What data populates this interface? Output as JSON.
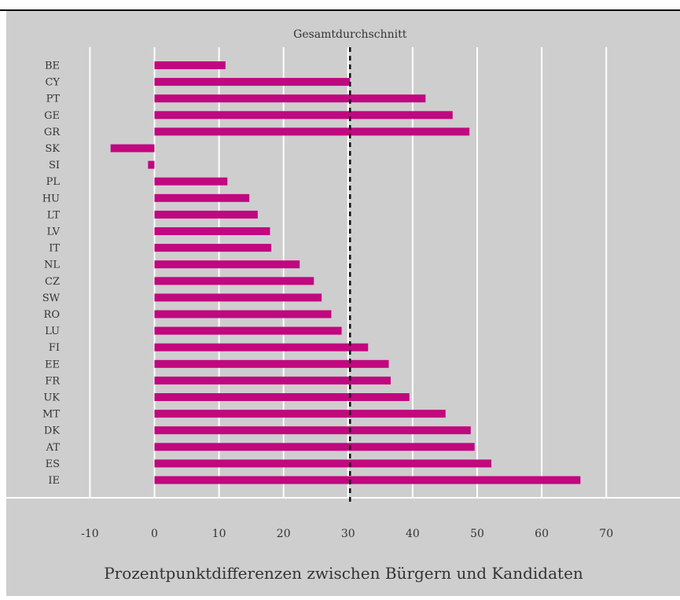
{
  "chart_data": {
    "type": "bar",
    "orientation": "horizontal",
    "categories": [
      "BE",
      "CY",
      "PT",
      "GE",
      "GR",
      "SK",
      "SI",
      "PL",
      "HU",
      "LT",
      "LV",
      "IT",
      "NL",
      "CZ",
      "SW",
      "RO",
      "LU",
      "FI",
      "EE",
      "FR",
      "UK",
      "MT",
      "DK",
      "AT",
      "ES",
      "IE"
    ],
    "values": [
      11,
      30.3,
      42,
      46.2,
      48.8,
      -6.8,
      -1,
      11.3,
      14.7,
      16,
      17.9,
      18.1,
      22.5,
      24.7,
      25.9,
      27.4,
      29,
      33.1,
      36.3,
      36.6,
      39.5,
      45.1,
      49,
      49.6,
      52.2,
      66
    ],
    "xlabel": "Prozentpunktdifferenzen zwischen Bürgern und Kandidaten",
    "ylabel": "",
    "xlim": [
      -15,
      81
    ],
    "xticks": [
      -10,
      0,
      10,
      20,
      30,
      40,
      50,
      60,
      70
    ],
    "xtick_labels": [
      "-10",
      "0",
      "10",
      "20",
      "30",
      "40",
      "50",
      "60",
      "70"
    ],
    "grid": true,
    "reference_line": {
      "value": 30.3,
      "label": "Gesamtdurchschnitt",
      "style": "dashed"
    },
    "colors": {
      "bar": "#c0087f",
      "panel": "#cecece",
      "grid": "#ffffff",
      "reference": "#111111",
      "border": "#000000"
    }
  }
}
